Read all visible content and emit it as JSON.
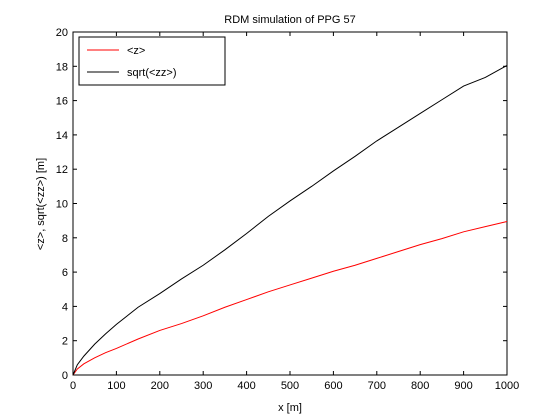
{
  "chart_data": {
    "type": "line",
    "title": "RDM simulation of PPG 57",
    "xlabel": "x [m]",
    "ylabel": "<z>,  sqrt(<zz>)  [m]",
    "xlim": [
      0,
      1000
    ],
    "ylim": [
      0,
      20
    ],
    "xticks": [
      0,
      100,
      200,
      300,
      400,
      500,
      600,
      700,
      800,
      900,
      1000
    ],
    "yticks": [
      0,
      2,
      4,
      6,
      8,
      10,
      12,
      14,
      16,
      18,
      20
    ],
    "grid": false,
    "legend_position": "top-left",
    "series": [
      {
        "name": "<z>",
        "color": "#ff0000",
        "x": [
          0,
          10,
          25,
          50,
          75,
          100,
          150,
          200,
          250,
          300,
          350,
          400,
          450,
          500,
          550,
          600,
          650,
          700,
          750,
          800,
          850,
          900,
          950,
          1000
        ],
        "y": [
          0,
          0.35,
          0.65,
          1.0,
          1.3,
          1.55,
          2.1,
          2.6,
          3.0,
          3.45,
          3.95,
          4.4,
          4.85,
          5.25,
          5.65,
          6.05,
          6.4,
          6.8,
          7.2,
          7.6,
          7.95,
          8.35,
          8.65,
          8.95
        ]
      },
      {
        "name": "sqrt(<zz>)",
        "color": "#000000",
        "x": [
          0,
          10,
          25,
          50,
          75,
          100,
          150,
          200,
          250,
          300,
          350,
          400,
          450,
          500,
          550,
          600,
          650,
          700,
          750,
          800,
          850,
          900,
          950,
          1000
        ],
        "y": [
          0,
          0.6,
          1.1,
          1.8,
          2.4,
          2.95,
          3.95,
          4.75,
          5.6,
          6.4,
          7.3,
          8.25,
          9.25,
          10.15,
          11.0,
          11.9,
          12.75,
          13.65,
          14.45,
          15.25,
          16.05,
          16.85,
          17.35,
          18.05
        ]
      }
    ]
  }
}
